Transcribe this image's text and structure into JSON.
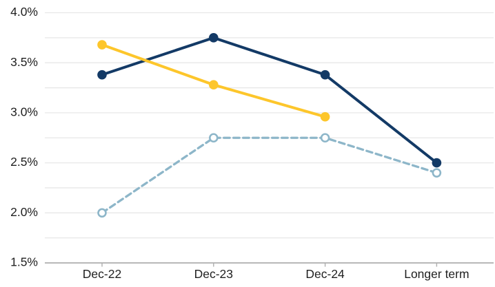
{
  "chart_data": {
    "type": "line",
    "title": "",
    "xlabel": "",
    "ylabel": "",
    "categories": [
      "Dec-22",
      "Dec-23",
      "Dec-24",
      "Longer term"
    ],
    "series": [
      {
        "name": "light-blue-dashed-open-markers",
        "color": "#8db6c9",
        "line_style": "dashed",
        "marker": "open-circle",
        "values": [
          2.0,
          2.75,
          2.75,
          2.4
        ]
      },
      {
        "name": "dark-navy-solid",
        "color": "#133a66",
        "line_style": "solid",
        "marker": "filled-circle",
        "values": [
          3.38,
          3.75,
          3.38,
          2.5
        ]
      },
      {
        "name": "gold-solid",
        "color": "#fdc62b",
        "line_style": "solid",
        "marker": "filled-circle",
        "values": [
          3.68,
          3.28,
          2.96,
          null
        ]
      }
    ],
    "ylim": [
      1.5,
      4.0
    ],
    "y_tick_labels": [
      "4.0%",
      "3.5%",
      "3.0%",
      "2.5%",
      "2.0%",
      "1.5%"
    ],
    "y_label_values": [
      4.0,
      3.5,
      3.0,
      2.5,
      2.0,
      1.5
    ],
    "gridline_step": 0.25,
    "grid": "horizontal-only",
    "legend": "none"
  },
  "colors": {
    "background": "#ffffff",
    "gridline": "#e7e7e7",
    "axis_line": "#aeaeae",
    "tick": "#aeaeae",
    "label_text": "#1f1f1f"
  }
}
